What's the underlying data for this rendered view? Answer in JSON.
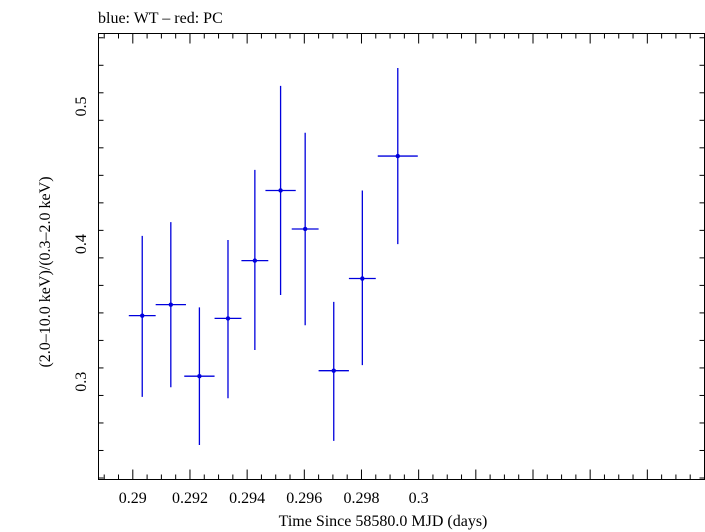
{
  "chart_data": {
    "type": "scatter",
    "title": "blue: WT – red: PC",
    "xlabel": "Time Since 58580.0 MJD (days)",
    "ylabel": "(2.0–10.0 keV)/(0.3–2.0 keV)",
    "xlim": [
      0.2888,
      0.31
    ],
    "ylim": [
      0.2289,
      0.5531
    ],
    "x_ticks": [
      {
        "value": 0.29,
        "label": "0.29"
      },
      {
        "value": 0.292,
        "label": "0.292"
      },
      {
        "value": 0.294,
        "label": "0.294"
      },
      {
        "value": 0.296,
        "label": "0.296"
      },
      {
        "value": 0.298,
        "label": "0.298"
      },
      {
        "value": 0.3,
        "label": "0.3"
      }
    ],
    "y_ticks": [
      {
        "value": 0.3,
        "label": "0.3"
      },
      {
        "value": 0.4,
        "label": "0.4"
      },
      {
        "value": 0.5,
        "label": "0.5"
      }
    ],
    "grid": false,
    "series": [
      {
        "color": "#0000dd",
        "points": [
          {
            "x": 0.29033,
            "xerr": 0.00047,
            "y": 0.348,
            "yerr_lo": 0.059,
            "yerr_hi": 0.058
          },
          {
            "x": 0.29133,
            "xerr": 0.00053,
            "y": 0.356,
            "yerr_lo": 0.06,
            "yerr_hi": 0.06
          },
          {
            "x": 0.29233,
            "xerr": 0.00053,
            "y": 0.304,
            "yerr_lo": 0.05,
            "yerr_hi": 0.05
          },
          {
            "x": 0.29333,
            "xerr": 0.00047,
            "y": 0.346,
            "yerr_lo": 0.058,
            "yerr_hi": 0.057
          },
          {
            "x": 0.29427,
            "xerr": 0.00047,
            "y": 0.388,
            "yerr_lo": 0.065,
            "yerr_hi": 0.066
          },
          {
            "x": 0.29517,
            "xerr": 0.00053,
            "y": 0.439,
            "yerr_lo": 0.076,
            "yerr_hi": 0.076
          },
          {
            "x": 0.29603,
            "xerr": 0.00047,
            "y": 0.411,
            "yerr_lo": 0.07,
            "yerr_hi": 0.07
          },
          {
            "x": 0.29703,
            "xerr": 0.00053,
            "y": 0.308,
            "yerr_lo": 0.051,
            "yerr_hi": 0.05
          },
          {
            "x": 0.29803,
            "xerr": 0.00047,
            "y": 0.375,
            "yerr_lo": 0.063,
            "yerr_hi": 0.064
          },
          {
            "x": 0.29927,
            "xerr": 0.0007,
            "y": 0.464,
            "yerr_lo": 0.064,
            "yerr_hi": 0.064
          }
        ]
      }
    ]
  }
}
